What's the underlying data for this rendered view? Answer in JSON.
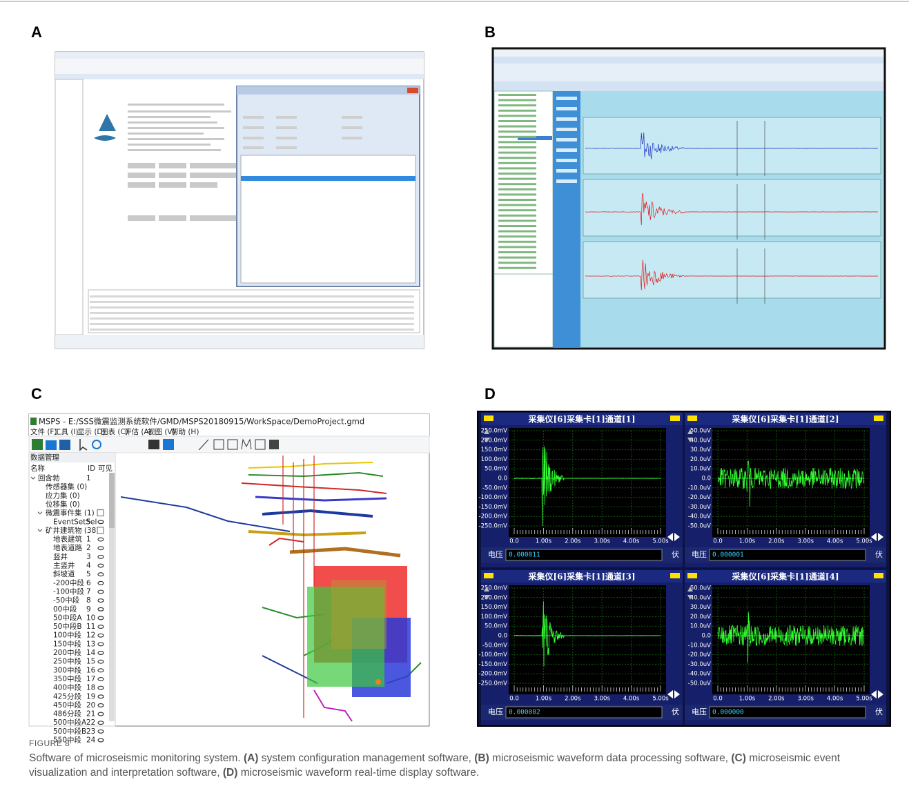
{
  "figure_labels": {
    "a": "A",
    "b": "B",
    "c": "C",
    "d": "D"
  },
  "panel_c": {
    "title_bar": "MSPS - E:/SSS微震监测系统软件/GMD/MSPS20180915/WorkSpace/DemoProject.gmd",
    "menu": [
      "文件 (F)",
      "工具 (I)",
      "显示 (D)",
      "图表 (C)",
      "评估 (A)",
      "视图 (V)",
      "帮助 (H)"
    ],
    "panel_title": "数据管理",
    "columns": [
      "名称",
      "ID",
      "可见"
    ],
    "tree": [
      {
        "name": "回含勃",
        "id": "1"
      },
      {
        "name": "传感器集 (0)"
      },
      {
        "name": "应力集 (0)"
      },
      {
        "name": "位移集 (0)"
      },
      {
        "name": "微震事件集 (1)"
      },
      {
        "name": "EventSetSel",
        "id": "5"
      },
      {
        "name": "矿井建筑物 (38)"
      },
      {
        "name": "地表建筑",
        "id": "1"
      },
      {
        "name": "地表道路",
        "id": "2"
      },
      {
        "name": "竖井",
        "id": "3"
      },
      {
        "name": "主竖井",
        "id": "4"
      },
      {
        "name": "斜坡道",
        "id": "5"
      },
      {
        "name": "-200中段",
        "id": "6"
      },
      {
        "name": "-100中段",
        "id": "7"
      },
      {
        "name": "-50中段",
        "id": "8"
      },
      {
        "name": "00中段",
        "id": "9"
      },
      {
        "name": "50中段A",
        "id": "10"
      },
      {
        "name": "50中段B",
        "id": "11"
      },
      {
        "name": "100中段",
        "id": "12"
      },
      {
        "name": "150中段",
        "id": "13"
      },
      {
        "name": "200中段",
        "id": "14"
      },
      {
        "name": "250中段",
        "id": "15"
      },
      {
        "name": "300中段",
        "id": "16"
      },
      {
        "name": "350中段",
        "id": "17"
      },
      {
        "name": "400中段",
        "id": "18"
      },
      {
        "name": "425分段",
        "id": "19"
      },
      {
        "name": "450中段",
        "id": "20"
      },
      {
        "name": "486分段",
        "id": "21"
      },
      {
        "name": "500中段A",
        "id": "22"
      },
      {
        "name": "500中段B",
        "id": "23"
      },
      {
        "name": "550中段",
        "id": "24"
      }
    ]
  },
  "panel_d": {
    "x_ticks": [
      "0.0",
      "1.00s",
      "2.00s",
      "3.00s",
      "4.00s",
      "5.00s"
    ],
    "scopes": [
      {
        "title": "采集仪[6]采集卡[1]通道[1]",
        "y_ticks": [
          "250.0mV",
          "200.0mV",
          "150.0mV",
          "100.0mV",
          "50.0mV",
          "0.0",
          "-50.0mV",
          "-100.0mV",
          "-150.0mV",
          "-200.0mV",
          "-250.0mV"
        ],
        "readout_label": "电压",
        "readout": "0.000011",
        "unit": "伏"
      },
      {
        "title": "采集仪[6]采集卡[1]通道[2]",
        "y_ticks": [
          "50.0uV",
          "40.0uV",
          "30.0uV",
          "20.0uV",
          "10.0uV",
          "0.0",
          "-10.0uV",
          "-20.0uV",
          "-30.0uV",
          "-40.0uV",
          "-50.0uV"
        ],
        "readout_label": "电压",
        "readout": "0.000001",
        "unit": "伏"
      },
      {
        "title": "采集仪[6]采集卡[1]通道[3]",
        "y_ticks": [
          "250.0mV",
          "200.0mV",
          "150.0mV",
          "100.0mV",
          "50.0mV",
          "0.0",
          "-50.0mV",
          "-100.0mV",
          "-150.0mV",
          "-200.0mV",
          "-250.0mV"
        ],
        "readout_label": "电压",
        "readout": "0.000002",
        "unit": "伏"
      },
      {
        "title": "采集仪[6]采集卡[1]通道[4]",
        "y_ticks": [
          "50.0uV",
          "40.0uV",
          "30.0uV",
          "20.0uV",
          "10.0uV",
          "0.0",
          "-10.0uV",
          "-20.0uV",
          "-30.0uV",
          "-40.0uV",
          "-50.0uV"
        ],
        "readout_label": "电压",
        "readout": "0.000000",
        "unit": "伏"
      }
    ]
  },
  "caption": {
    "figure": "FIGURE 8",
    "lead": "Software of microseismic monitoring system.",
    "parts": [
      {
        "label": "(A)",
        "text": "system configuration management software,"
      },
      {
        "label": "(B)",
        "text": "microseismic waveform data processing software,"
      },
      {
        "label": "(C)",
        "text": "microseismic event visualization and interpretation software,"
      },
      {
        "label": "(D)",
        "text": "microseismic waveform real-time display software."
      }
    ]
  }
}
